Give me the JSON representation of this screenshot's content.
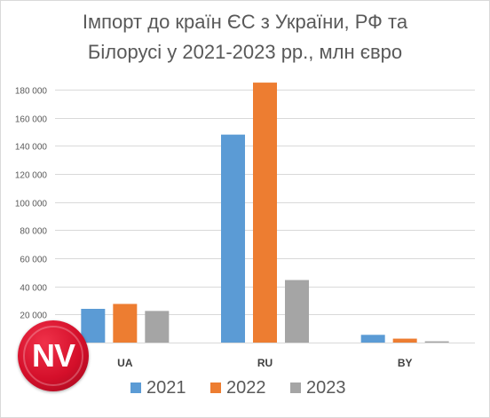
{
  "chart_data": {
    "type": "bar",
    "title_lines": [
      "Імпорт до країн ЄС з України, РФ та",
      "Білорусі у 2021-2023 рр., млн євро"
    ],
    "categories": [
      "UA",
      "RU",
      "BY"
    ],
    "series": [
      {
        "name": "2021",
        "color": "#5b9bd5",
        "values": [
          24000,
          148000,
          5500
        ]
      },
      {
        "name": "2022",
        "color": "#ed7d31",
        "values": [
          27500,
          185000,
          2800
        ]
      },
      {
        "name": "2023",
        "color": "#a5a5a5",
        "values": [
          22500,
          44500,
          900
        ]
      }
    ],
    "ylim": [
      0,
      180000
    ],
    "yticks": [
      20000,
      40000,
      60000,
      80000,
      100000,
      120000,
      140000,
      160000,
      180000
    ],
    "ytick_labels": [
      "20 000",
      "40 000",
      "60 000",
      "80 000",
      "100 000",
      "120 000",
      "140 000",
      "160 000",
      "180 000"
    ],
    "grid": true,
    "legend_position": "bottom"
  },
  "logo": {
    "text": "NV"
  }
}
